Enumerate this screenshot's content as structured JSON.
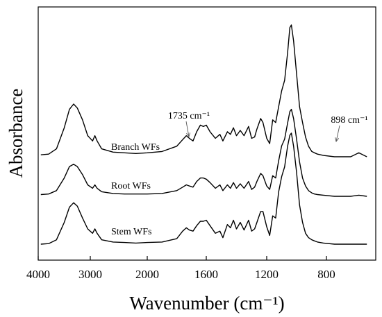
{
  "chart_data": {
    "type": "line",
    "xlabel": "Wavenumber (cm⁻¹)",
    "ylabel": "Absorbance",
    "x_axis": {
      "reversed": true,
      "broken_scale": true,
      "ticks": [
        {
          "value": 4000,
          "label": "4000"
        },
        {
          "value": 3000,
          "label": "3000"
        },
        {
          "value": 2000,
          "label": "2000"
        },
        {
          "value": 1600,
          "label": "1600"
        },
        {
          "value": 1200,
          "label": "1200"
        },
        {
          "value": 800,
          "label": "800"
        }
      ]
    },
    "y_axis": {
      "tick_labels": false
    },
    "grid": false,
    "annotations": [
      {
        "text": "1735 cm⁻¹",
        "x": 1735
      },
      {
        "text": "898 cm⁻¹",
        "x": 898
      }
    ],
    "series": [
      {
        "name": "Branch WFs",
        "points": [
          [
            3950,
            0.015
          ],
          [
            3800,
            0.02
          ],
          [
            3650,
            0.06
          ],
          [
            3500,
            0.22
          ],
          [
            3400,
            0.36
          ],
          [
            3320,
            0.4
          ],
          [
            3250,
            0.37
          ],
          [
            3150,
            0.28
          ],
          [
            3050,
            0.16
          ],
          [
            2960,
            0.12
          ],
          [
            2920,
            0.16
          ],
          [
            2880,
            0.12
          ],
          [
            2800,
            0.06
          ],
          [
            2600,
            0.035
          ],
          [
            2400,
            0.03
          ],
          [
            2200,
            0.025
          ],
          [
            2000,
            0.03
          ],
          [
            1900,
            0.04
          ],
          [
            1800,
            0.08
          ],
          [
            1760,
            0.13
          ],
          [
            1735,
            0.16
          ],
          [
            1715,
            0.14
          ],
          [
            1690,
            0.12
          ],
          [
            1665,
            0.19
          ],
          [
            1640,
            0.24
          ],
          [
            1620,
            0.23
          ],
          [
            1600,
            0.24
          ],
          [
            1575,
            0.19
          ],
          [
            1540,
            0.14
          ],
          [
            1510,
            0.17
          ],
          [
            1490,
            0.12
          ],
          [
            1460,
            0.19
          ],
          [
            1440,
            0.17
          ],
          [
            1420,
            0.22
          ],
          [
            1400,
            0.16
          ],
          [
            1375,
            0.2
          ],
          [
            1350,
            0.16
          ],
          [
            1320,
            0.23
          ],
          [
            1300,
            0.14
          ],
          [
            1280,
            0.15
          ],
          [
            1265,
            0.21
          ],
          [
            1240,
            0.29
          ],
          [
            1225,
            0.26
          ],
          [
            1200,
            0.14
          ],
          [
            1180,
            0.1
          ],
          [
            1160,
            0.28
          ],
          [
            1140,
            0.26
          ],
          [
            1120,
            0.38
          ],
          [
            1100,
            0.5
          ],
          [
            1080,
            0.58
          ],
          [
            1060,
            0.79
          ],
          [
            1045,
            0.98
          ],
          [
            1035,
            1.0
          ],
          [
            1020,
            0.88
          ],
          [
            1000,
            0.63
          ],
          [
            980,
            0.38
          ],
          [
            960,
            0.26
          ],
          [
            940,
            0.15
          ],
          [
            920,
            0.08
          ],
          [
            898,
            0.04
          ],
          [
            880,
            0.03
          ],
          [
            860,
            0.02
          ],
          [
            820,
            0.01
          ],
          [
            780,
            0.0
          ],
          [
            740,
            0.0
          ],
          [
            720,
            0.03
          ],
          [
            700,
            0.0
          ]
        ]
      },
      {
        "name": "Root WFs",
        "points": [
          [
            3950,
            0.015
          ],
          [
            3800,
            0.02
          ],
          [
            3650,
            0.05
          ],
          [
            3500,
            0.16
          ],
          [
            3400,
            0.26
          ],
          [
            3320,
            0.28
          ],
          [
            3250,
            0.26
          ],
          [
            3150,
            0.19
          ],
          [
            3050,
            0.1
          ],
          [
            2960,
            0.07
          ],
          [
            2920,
            0.1
          ],
          [
            2880,
            0.07
          ],
          [
            2800,
            0.04
          ],
          [
            2600,
            0.025
          ],
          [
            2400,
            0.02
          ],
          [
            2200,
            0.02
          ],
          [
            2000,
            0.02
          ],
          [
            1900,
            0.025
          ],
          [
            1800,
            0.05
          ],
          [
            1760,
            0.08
          ],
          [
            1735,
            0.1
          ],
          [
            1715,
            0.09
          ],
          [
            1690,
            0.08
          ],
          [
            1665,
            0.13
          ],
          [
            1640,
            0.16
          ],
          [
            1620,
            0.16
          ],
          [
            1600,
            0.15
          ],
          [
            1575,
            0.12
          ],
          [
            1540,
            0.07
          ],
          [
            1510,
            0.1
          ],
          [
            1490,
            0.05
          ],
          [
            1460,
            0.1
          ],
          [
            1440,
            0.07
          ],
          [
            1420,
            0.12
          ],
          [
            1400,
            0.07
          ],
          [
            1375,
            0.11
          ],
          [
            1350,
            0.07
          ],
          [
            1320,
            0.13
          ],
          [
            1300,
            0.06
          ],
          [
            1280,
            0.08
          ],
          [
            1265,
            0.13
          ],
          [
            1240,
            0.2
          ],
          [
            1225,
            0.18
          ],
          [
            1200,
            0.09
          ],
          [
            1180,
            0.06
          ],
          [
            1160,
            0.18
          ],
          [
            1140,
            0.16
          ],
          [
            1120,
            0.31
          ],
          [
            1100,
            0.44
          ],
          [
            1080,
            0.5
          ],
          [
            1060,
            0.64
          ],
          [
            1045,
            0.74
          ],
          [
            1035,
            0.76
          ],
          [
            1020,
            0.68
          ],
          [
            1000,
            0.5
          ],
          [
            980,
            0.3
          ],
          [
            960,
            0.16
          ],
          [
            940,
            0.09
          ],
          [
            920,
            0.05
          ],
          [
            898,
            0.03
          ],
          [
            880,
            0.02
          ],
          [
            860,
            0.015
          ],
          [
            820,
            0.01
          ],
          [
            780,
            0.0
          ],
          [
            740,
            0.0
          ],
          [
            720,
            0.01
          ],
          [
            700,
            0.0
          ]
        ]
      },
      {
        "name": "Stem WFs",
        "points": [
          [
            3950,
            0.0
          ],
          [
            3800,
            0.005
          ],
          [
            3650,
            0.04
          ],
          [
            3500,
            0.2
          ],
          [
            3400,
            0.34
          ],
          [
            3320,
            0.38
          ],
          [
            3250,
            0.35
          ],
          [
            3150,
            0.24
          ],
          [
            3050,
            0.14
          ],
          [
            2960,
            0.1
          ],
          [
            2920,
            0.14
          ],
          [
            2880,
            0.1
          ],
          [
            2800,
            0.04
          ],
          [
            2600,
            0.02
          ],
          [
            2400,
            0.015
          ],
          [
            2200,
            0.01
          ],
          [
            2000,
            0.015
          ],
          [
            1900,
            0.02
          ],
          [
            1800,
            0.05
          ],
          [
            1760,
            0.12
          ],
          [
            1735,
            0.15
          ],
          [
            1715,
            0.13
          ],
          [
            1690,
            0.12
          ],
          [
            1665,
            0.17
          ],
          [
            1640,
            0.21
          ],
          [
            1620,
            0.21
          ],
          [
            1600,
            0.22
          ],
          [
            1575,
            0.17
          ],
          [
            1540,
            0.1
          ],
          [
            1510,
            0.12
          ],
          [
            1490,
            0.06
          ],
          [
            1460,
            0.18
          ],
          [
            1440,
            0.15
          ],
          [
            1420,
            0.22
          ],
          [
            1400,
            0.14
          ],
          [
            1375,
            0.2
          ],
          [
            1350,
            0.13
          ],
          [
            1320,
            0.22
          ],
          [
            1300,
            0.12
          ],
          [
            1280,
            0.14
          ],
          [
            1265,
            0.2
          ],
          [
            1240,
            0.3
          ],
          [
            1225,
            0.3
          ],
          [
            1200,
            0.16
          ],
          [
            1180,
            0.08
          ],
          [
            1160,
            0.26
          ],
          [
            1140,
            0.24
          ],
          [
            1120,
            0.48
          ],
          [
            1100,
            0.62
          ],
          [
            1080,
            0.71
          ],
          [
            1060,
            0.9
          ],
          [
            1045,
            1.0
          ],
          [
            1035,
            1.02
          ],
          [
            1020,
            0.9
          ],
          [
            1000,
            0.66
          ],
          [
            980,
            0.36
          ],
          [
            960,
            0.2
          ],
          [
            940,
            0.1
          ],
          [
            920,
            0.06
          ],
          [
            898,
            0.04
          ],
          [
            880,
            0.03
          ],
          [
            860,
            0.02
          ],
          [
            820,
            0.01
          ],
          [
            780,
            0.0
          ],
          [
            740,
            0.0
          ],
          [
            720,
            0.0
          ],
          [
            700,
            0.0
          ]
        ]
      }
    ]
  }
}
